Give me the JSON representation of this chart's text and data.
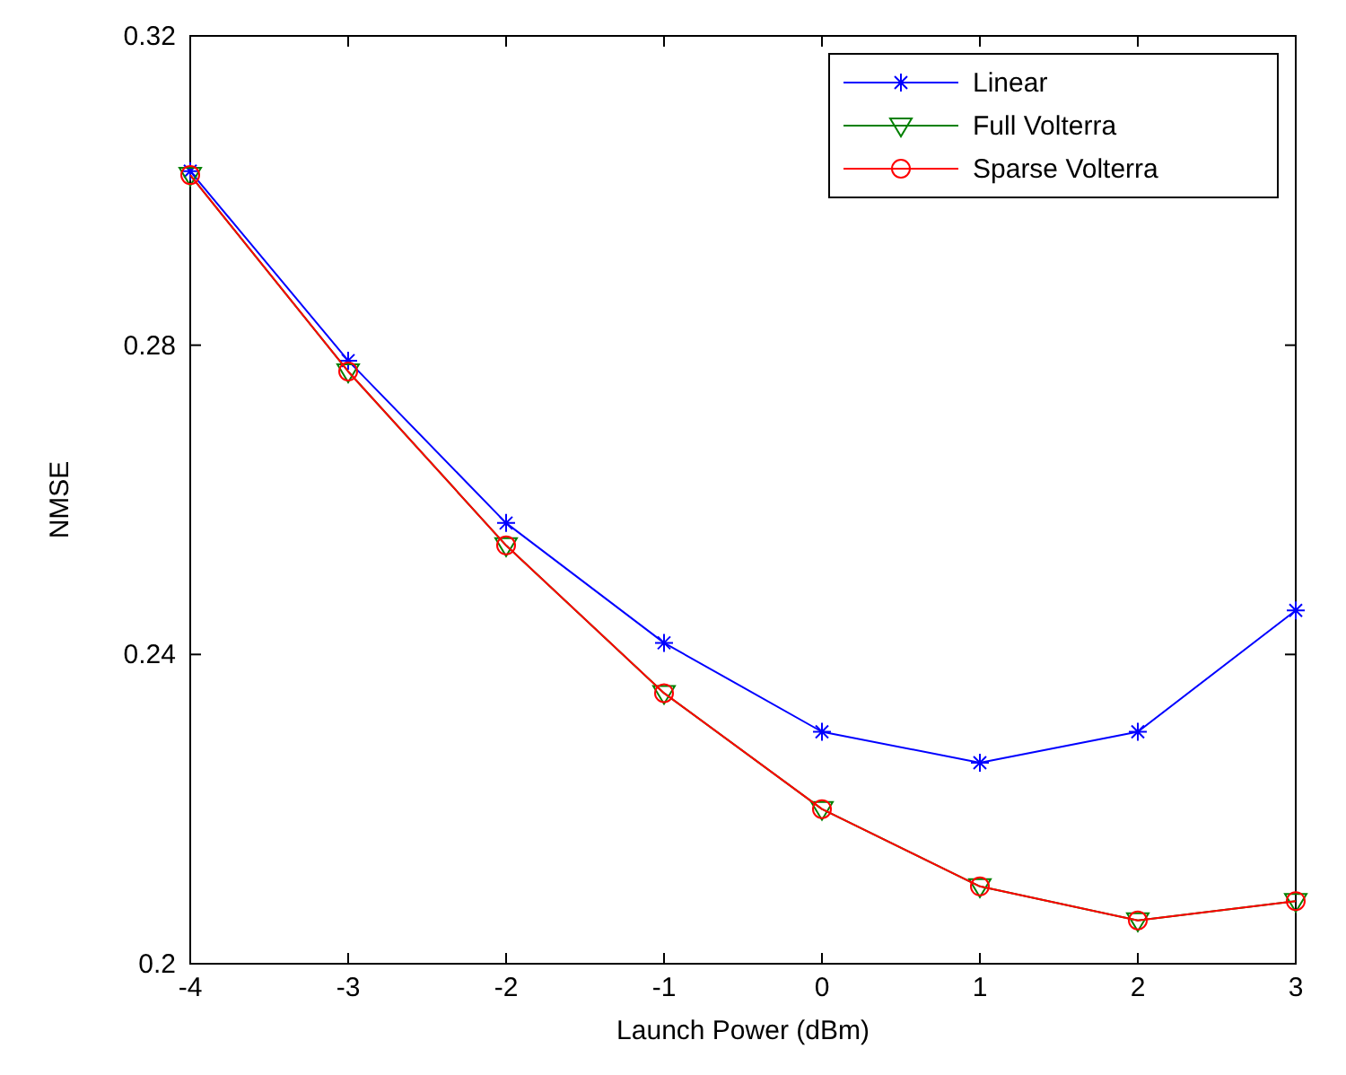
{
  "chart_data": {
    "type": "line",
    "xlabel": "Launch Power (dBm)",
    "ylabel": "NMSE",
    "x": [
      -4,
      -3,
      -2,
      -1,
      0,
      1,
      2,
      3
    ],
    "series": [
      {
        "name": "Linear",
        "color": "#0000ff",
        "marker": "cross",
        "values": [
          0.3025,
          0.278,
          0.257,
          0.2415,
          0.23,
          0.226,
          0.23,
          0.2457
        ]
      },
      {
        "name": "Full Volterra",
        "color": "#008000",
        "marker": "triangle",
        "values": [
          0.302,
          0.2766,
          0.2541,
          0.235,
          0.22,
          0.21,
          0.2056,
          0.2081
        ]
      },
      {
        "name": "Sparse Volterra",
        "color": "#ff0000",
        "marker": "circle",
        "values": [
          0.302,
          0.2766,
          0.2541,
          0.235,
          0.22,
          0.21,
          0.2056,
          0.2081
        ]
      }
    ],
    "xlim": [
      -4,
      3
    ],
    "xticks": [
      -4,
      -3,
      -2,
      -1,
      0,
      1,
      2,
      3
    ],
    "ylim": [
      0.2,
      0.32
    ],
    "yticks": [
      0.2,
      0.24,
      0.28,
      0.32
    ],
    "grid": false,
    "legend": "top right",
    "line_style": "solid"
  }
}
